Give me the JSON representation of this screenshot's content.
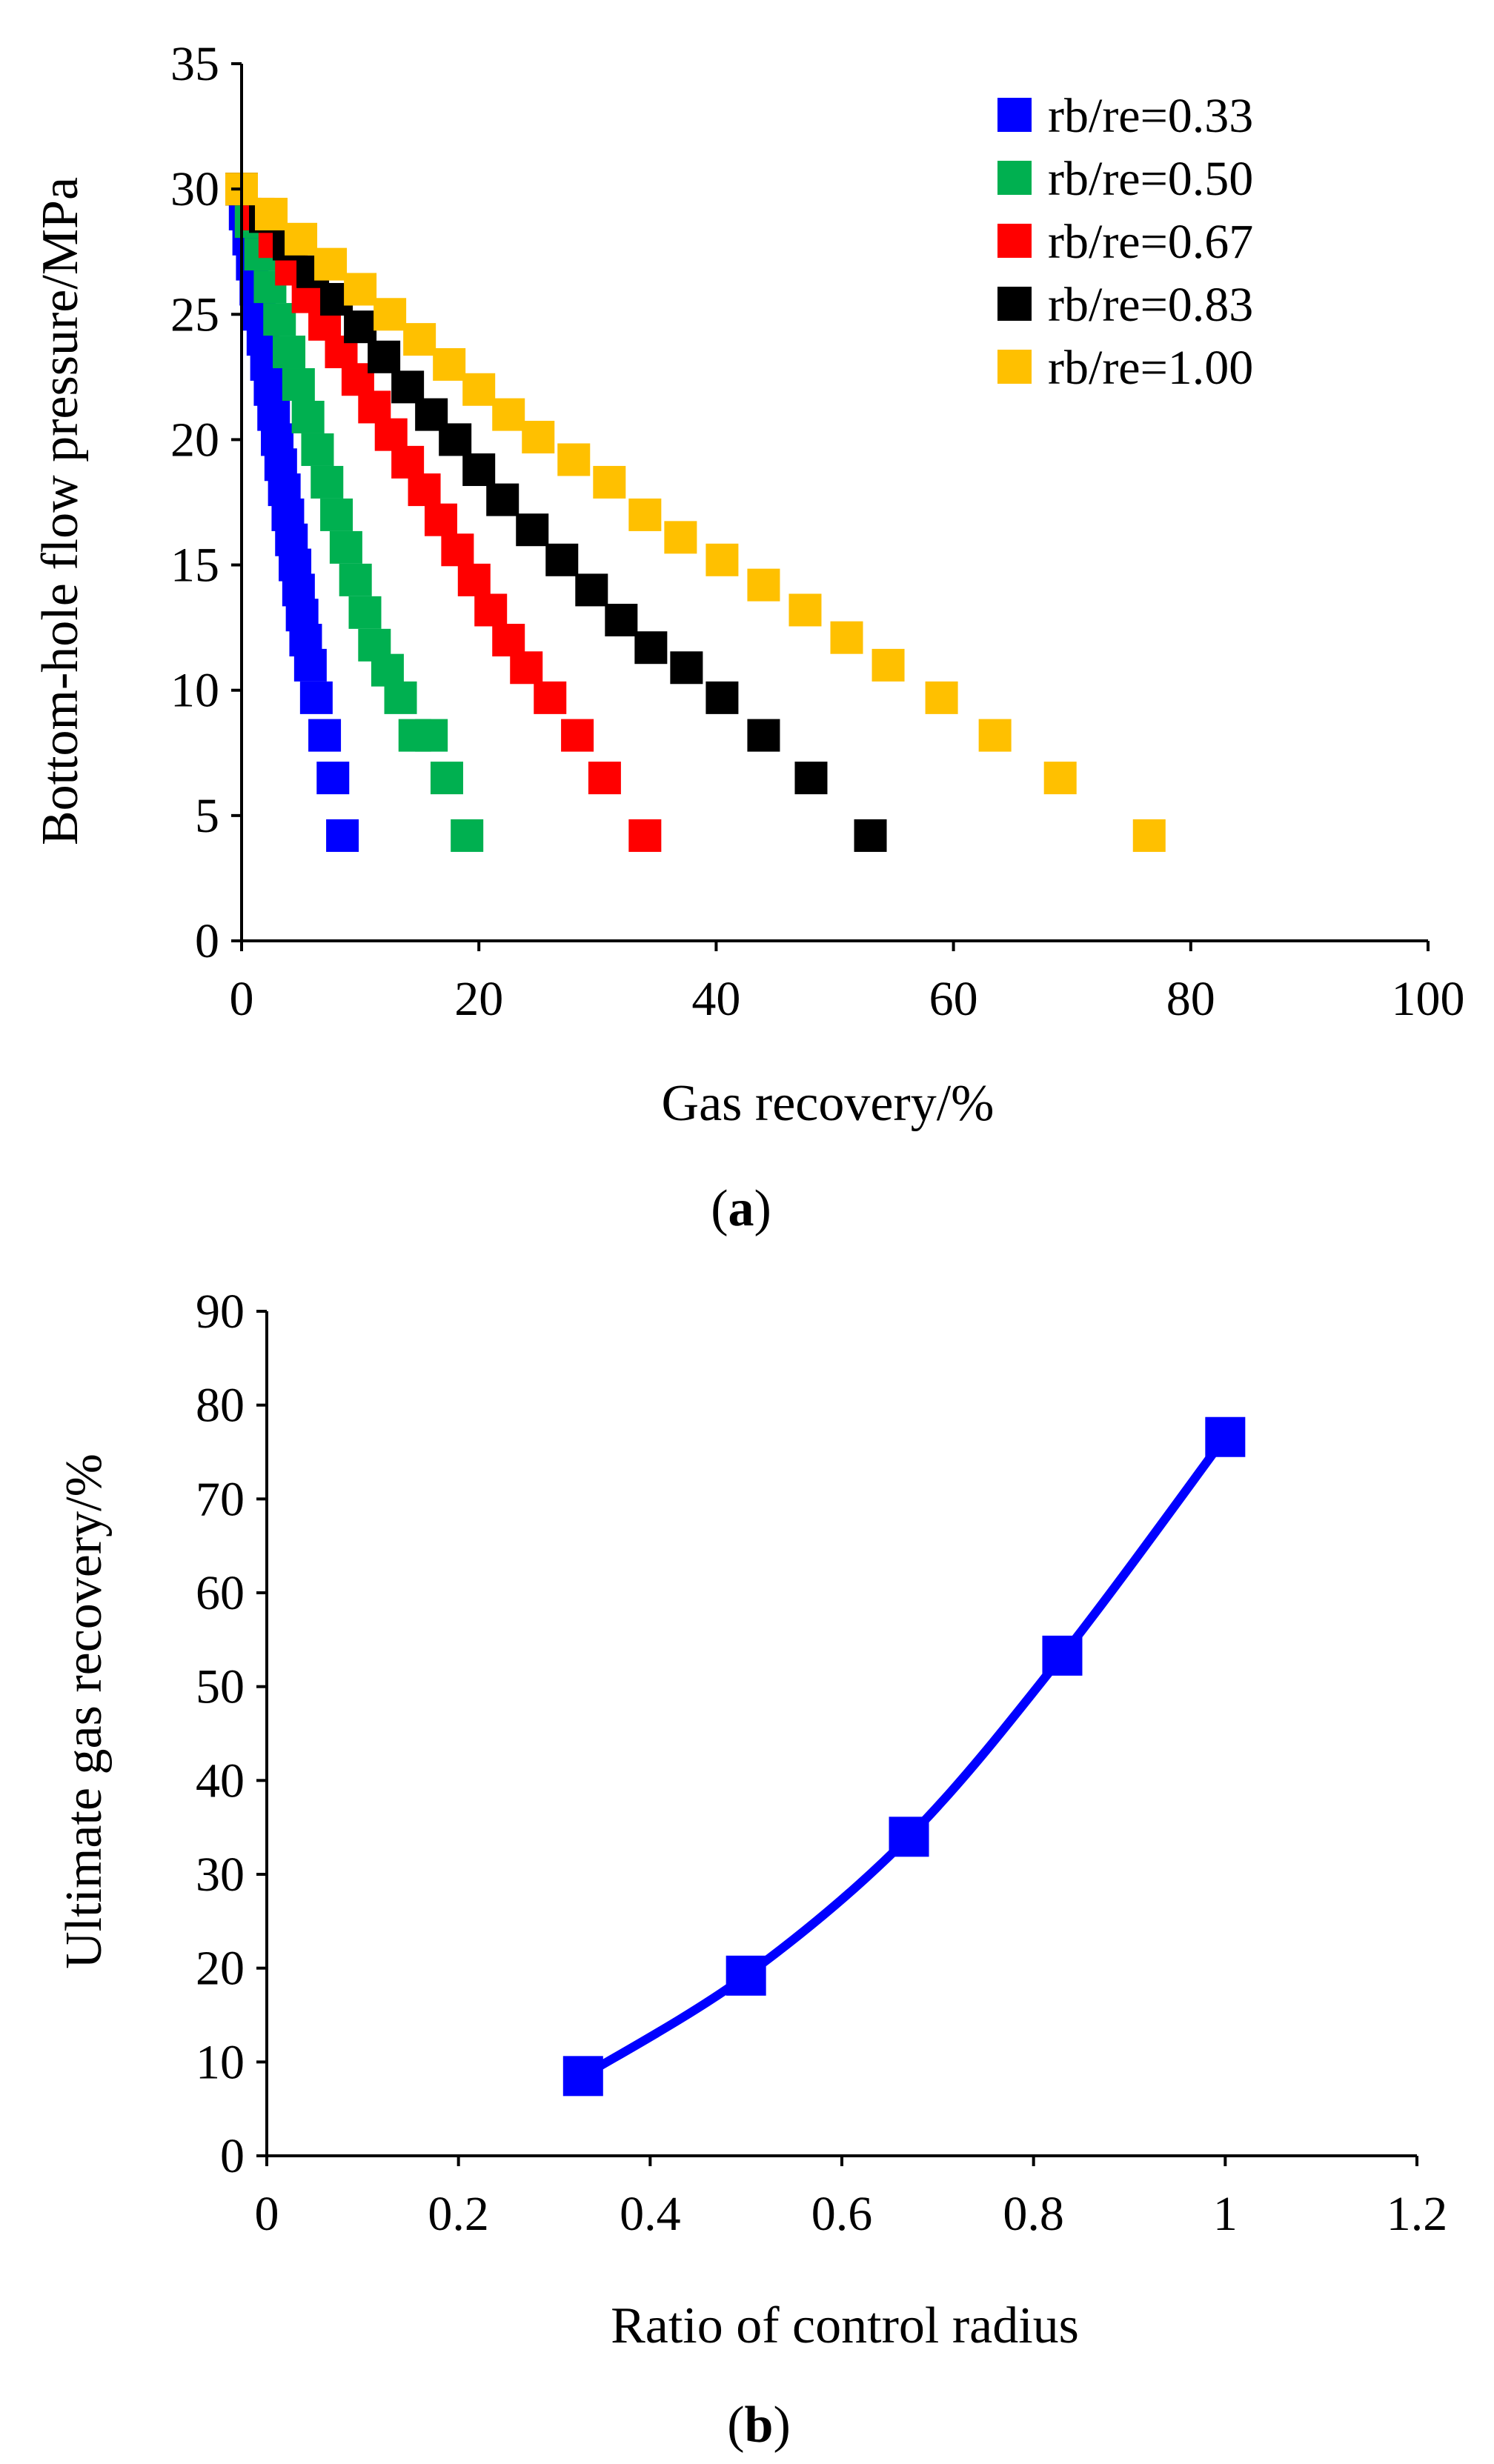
{
  "chart_data": [
    {
      "id": "a",
      "type": "scatter",
      "caption": {
        "open": "(",
        "letter": "a",
        "close": ")"
      },
      "xlabel": "Gas recovery/%",
      "ylabel": "Bottom-hole flow pressure/MPa",
      "xlim": [
        0,
        100
      ],
      "ylim": [
        0,
        35
      ],
      "xticks": [
        "0",
        "20",
        "40",
        "60",
        "80",
        "100"
      ],
      "yticks": [
        "0",
        "5",
        "10",
        "15",
        "20",
        "25",
        "30",
        "35"
      ],
      "legend_position": "top-right",
      "series": [
        {
          "name": "rb/re=0.33",
          "color": "#0000FF",
          "points": [
            [
              0,
              30.0
            ],
            [
              0.3,
              29.0
            ],
            [
              0.6,
              28.0
            ],
            [
              0.9,
              27.0
            ],
            [
              1.2,
              26.0
            ],
            [
              1.5,
              25.0
            ],
            [
              1.8,
              24.0
            ],
            [
              2.1,
              23.0
            ],
            [
              2.4,
              22.0
            ],
            [
              2.7,
              21.0
            ],
            [
              3.0,
              20.0
            ],
            [
              3.3,
              19.0
            ],
            [
              3.6,
              18.0
            ],
            [
              3.9,
              17.0
            ],
            [
              4.2,
              16.0
            ],
            [
              4.5,
              15.0
            ],
            [
              4.8,
              14.0
            ],
            [
              5.1,
              13.0
            ],
            [
              5.4,
              12.0
            ],
            [
              5.8,
              11.0
            ],
            [
              6.3,
              9.7
            ],
            [
              7.0,
              8.2
            ],
            [
              7.7,
              6.5
            ],
            [
              8.5,
              4.2
            ]
          ]
        },
        {
          "name": "rb/re=0.50",
          "color": "#00B050",
          "points": [
            [
              0,
              30.0
            ],
            [
              0.8,
              28.7
            ],
            [
              1.6,
              27.4
            ],
            [
              2.4,
              26.1
            ],
            [
              3.2,
              24.8
            ],
            [
              4.0,
              23.5
            ],
            [
              4.8,
              22.2
            ],
            [
              5.6,
              20.9
            ],
            [
              6.4,
              19.6
            ],
            [
              7.2,
              18.3
            ],
            [
              8.0,
              17.0
            ],
            [
              8.8,
              15.7
            ],
            [
              9.6,
              14.4
            ],
            [
              10.4,
              13.1
            ],
            [
              11.2,
              11.8
            ],
            [
              12.3,
              10.8
            ],
            [
              13.4,
              9.7
            ],
            [
              14.6,
              8.2
            ],
            [
              16.0,
              8.2
            ],
            [
              17.3,
              6.5
            ],
            [
              19.0,
              4.2
            ]
          ]
        },
        {
          "name": "rb/re=0.67",
          "color": "#FF0000",
          "points": [
            [
              0,
              30.0
            ],
            [
              1.4,
              29.0
            ],
            [
              2.8,
              27.9
            ],
            [
              4.2,
              26.8
            ],
            [
              5.6,
              25.7
            ],
            [
              7.0,
              24.6
            ],
            [
              8.4,
              23.5
            ],
            [
              9.8,
              22.4
            ],
            [
              11.2,
              21.3
            ],
            [
              12.6,
              20.2
            ],
            [
              14.0,
              19.1
            ],
            [
              15.4,
              18.0
            ],
            [
              16.8,
              16.8
            ],
            [
              18.2,
              15.6
            ],
            [
              19.6,
              14.4
            ],
            [
              21.0,
              13.2
            ],
            [
              22.5,
              12.0
            ],
            [
              24.0,
              10.9
            ],
            [
              26.0,
              9.7
            ],
            [
              28.3,
              8.2
            ],
            [
              30.6,
              6.5
            ],
            [
              34.0,
              4.2
            ]
          ]
        },
        {
          "name": "rb/re=0.83",
          "color": "#000000",
          "points": [
            [
              0,
              30.0
            ],
            [
              2.0,
              28.9
            ],
            [
              4.0,
              27.8
            ],
            [
              6.0,
              26.7
            ],
            [
              8.0,
              25.6
            ],
            [
              10.0,
              24.5
            ],
            [
              12.0,
              23.3
            ],
            [
              14.0,
              22.1
            ],
            [
              16.0,
              21.0
            ],
            [
              18.0,
              20.0
            ],
            [
              20.0,
              18.8
            ],
            [
              22.0,
              17.6
            ],
            [
              24.5,
              16.4
            ],
            [
              27.0,
              15.2
            ],
            [
              29.5,
              14.0
            ],
            [
              32.0,
              12.8
            ],
            [
              34.5,
              11.7
            ],
            [
              37.5,
              10.9
            ],
            [
              40.5,
              9.7
            ],
            [
              44.0,
              8.2
            ],
            [
              48.0,
              6.5
            ],
            [
              53.0,
              4.2
            ]
          ]
        },
        {
          "name": "rb/re=1.00",
          "color": "#FFC000",
          "points": [
            [
              0,
              30.0
            ],
            [
              2.5,
              29.0
            ],
            [
              5.0,
              28.0
            ],
            [
              7.5,
              27.0
            ],
            [
              10.0,
              26.0
            ],
            [
              12.5,
              25.0
            ],
            [
              15.0,
              24.0
            ],
            [
              17.5,
              23.0
            ],
            [
              20.0,
              22.0
            ],
            [
              22.5,
              21.0
            ],
            [
              25.0,
              20.1
            ],
            [
              28.0,
              19.2
            ],
            [
              31.0,
              18.3
            ],
            [
              34.0,
              17.0
            ],
            [
              37.0,
              16.1
            ],
            [
              40.5,
              15.2
            ],
            [
              44.0,
              14.2
            ],
            [
              47.5,
              13.2
            ],
            [
              51.0,
              12.1
            ],
            [
              54.5,
              11.0
            ],
            [
              59.0,
              9.7
            ],
            [
              63.5,
              8.2
            ],
            [
              69.0,
              6.5
            ],
            [
              76.5,
              4.2
            ]
          ]
        }
      ]
    },
    {
      "id": "b",
      "type": "line",
      "caption": {
        "open": "(",
        "letter": "b",
        "close": ")"
      },
      "xlabel": "Ratio of control radius",
      "ylabel": "Ultimate gas recovery/%",
      "xlim": [
        0,
        1.2
      ],
      "ylim": [
        0,
        90
      ],
      "xticks": [
        "0",
        "0.2",
        "0.4",
        "0.6",
        "0.8",
        "1",
        "1.2"
      ],
      "yticks": [
        "0",
        "10",
        "20",
        "30",
        "40",
        "50",
        "60",
        "70",
        "80",
        "90"
      ],
      "series": [
        {
          "name": "Ultimate gas recovery",
          "color": "#0000FF",
          "x": [
            0.33,
            0.5,
            0.67,
            0.83,
            1.0
          ],
          "y": [
            8.5,
            19.2,
            34.0,
            53.3,
            76.6
          ]
        }
      ]
    }
  ]
}
